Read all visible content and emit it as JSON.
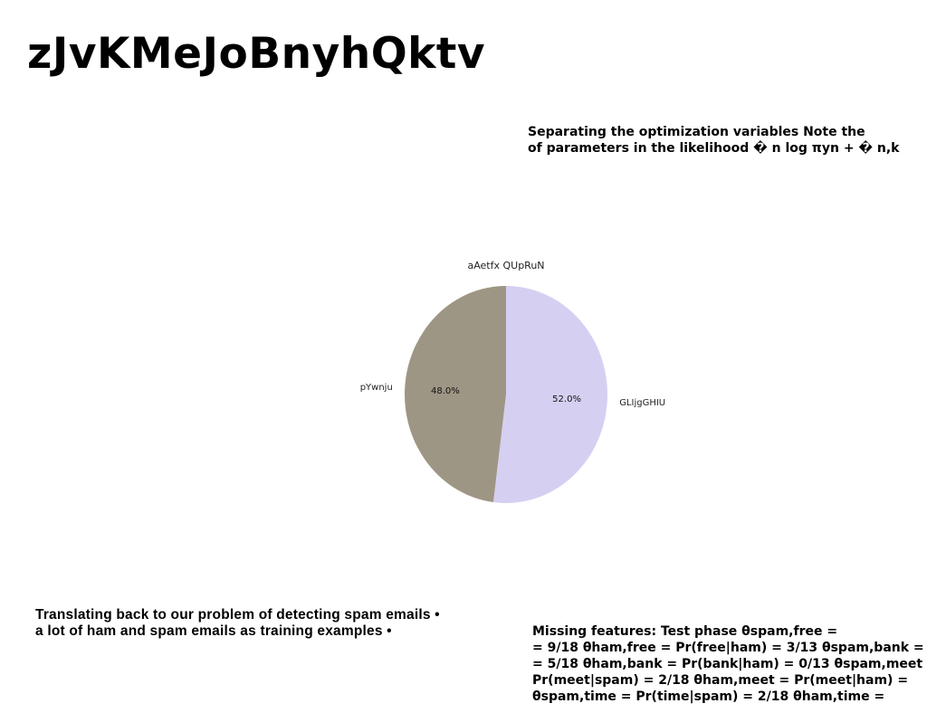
{
  "page": {
    "title": "zJvKMeJoBnyhQktv"
  },
  "top_note": {
    "lines": [
      "Separating the optimization variables Note the",
      "of parameters in the likelihood � n log πyn + � n,k"
    ]
  },
  "bottom_left": {
    "lines": [
      "Translating back to our problem of detecting spam emails •",
      "a lot of ham and spam emails as training examples •"
    ]
  },
  "bottom_right": {
    "lines": [
      "Missing features: Test phase θspam,free =",
      "= 9/18 θham,free = Pr(free|ham) = 3/13 θspam,bank =",
      "= 5/18 θham,bank = Pr(bank|ham) = 0/13 θspam,meet",
      "Pr(meet|spam) = 2/18 θham,meet = Pr(meet|ham) =",
      "θspam,time = Pr(time|spam) = 2/18 θham,time ="
    ]
  },
  "chart_data": {
    "type": "pie",
    "title": "aAetfx QUpRuN",
    "slices": [
      {
        "label": "GLIjgGHIU",
        "value": 52.0,
        "pct_label": "52.0%",
        "color": "#d5d0f2"
      },
      {
        "label": "pYwnju",
        "value": 48.0,
        "pct_label": "48.0%",
        "color": "#9e9684"
      }
    ],
    "start": "top",
    "direction": "clockwise",
    "legend": "none"
  }
}
